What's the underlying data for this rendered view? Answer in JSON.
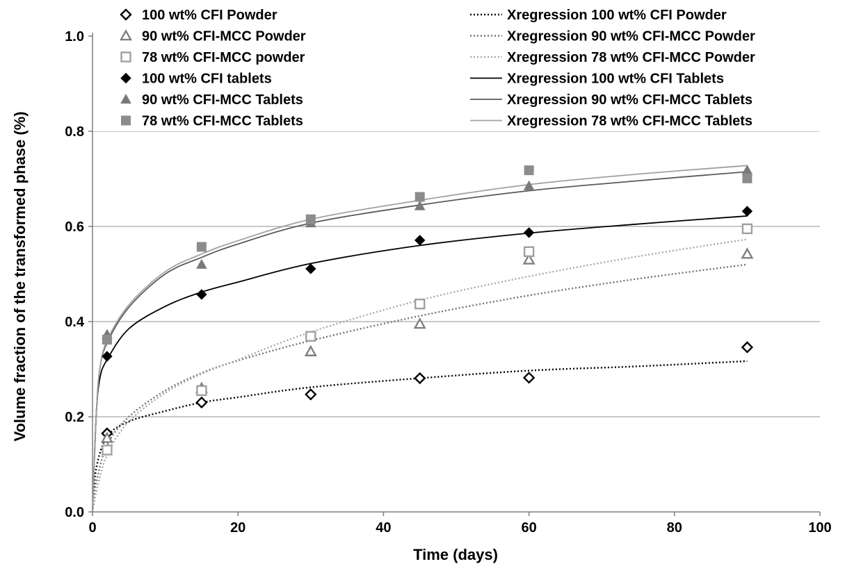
{
  "chart_data": {
    "type": "scatter",
    "title": "",
    "xlabel": "Time (days)",
    "ylabel": "Volume fraction of the transformed phase (%)",
    "xlim": [
      0,
      100
    ],
    "ylim": [
      0,
      1.0
    ],
    "xticks": [
      "0",
      "20",
      "40",
      "60",
      "80",
      "100"
    ],
    "yticks": [
      "0.0",
      "0.2",
      "0.4",
      "0.6",
      "0.8",
      "1.0"
    ],
    "grid": "horizontal",
    "legend_position": "top",
    "series": [
      {
        "name": "100 wt% CFI Powder",
        "marker": "diamond-open",
        "color": "#000000",
        "x": [
          2,
          15,
          30,
          45,
          60,
          90
        ],
        "y": [
          0.165,
          0.23,
          0.247,
          0.281,
          0.282,
          0.346
        ]
      },
      {
        "name": "90   wt% CFI-MCC Powder",
        "marker": "triangle-open",
        "color": "#808080",
        "x": [
          2,
          15,
          30,
          45,
          60,
          90
        ],
        "y": [
          0.155,
          0.26,
          0.337,
          0.395,
          0.53,
          0.542
        ]
      },
      {
        "name": "78   wt% CFI-MCC powder",
        "marker": "square-open",
        "color": "#a0a0a0",
        "x": [
          2,
          15,
          30,
          45,
          60,
          90
        ],
        "y": [
          0.13,
          0.255,
          0.369,
          0.437,
          0.547,
          0.595
        ]
      },
      {
        "name": "100 wt% CFI tablets",
        "marker": "diamond",
        "color": "#000000",
        "x": [
          2,
          15,
          30,
          45,
          60,
          90
        ],
        "y": [
          0.327,
          0.457,
          0.511,
          0.571,
          0.587,
          0.632
        ]
      },
      {
        "name": "90   wt% CFI-MCC Tablets",
        "marker": "triangle",
        "color": "#7a7a7a",
        "x": [
          2,
          15,
          30,
          45,
          60,
          90
        ],
        "y": [
          0.373,
          0.52,
          0.607,
          0.643,
          0.685,
          0.718
        ]
      },
      {
        "name": "78   wt% CFI-MCC Tablets",
        "marker": "square",
        "color": "#8c8c8c",
        "x": [
          2,
          15,
          30,
          45,
          60,
          90
        ],
        "y": [
          0.362,
          0.557,
          0.615,
          0.662,
          0.718,
          0.701
        ]
      }
    ],
    "regressions": [
      {
        "name": "Xregression 100 wt% CFI Powder",
        "style": "dotted",
        "color": "#000000",
        "x": [
          0.5,
          2,
          5,
          10,
          15,
          20,
          30,
          45,
          60,
          75,
          90
        ],
        "y": [
          0.09,
          0.158,
          0.19,
          0.212,
          0.23,
          0.241,
          0.262,
          0.281,
          0.297,
          0.306,
          0.317
        ]
      },
      {
        "name": "Xregression 90   wt% CFI-MCC Powder",
        "style": "dotted",
        "color": "#707070",
        "x": [
          0.5,
          2,
          5,
          10,
          15,
          20,
          30,
          45,
          60,
          75,
          90
        ],
        "y": [
          0.06,
          0.14,
          0.2,
          0.255,
          0.292,
          0.318,
          0.36,
          0.412,
          0.455,
          0.49,
          0.52
        ]
      },
      {
        "name": "Xregression 78   wt% CFI-MCC Powder",
        "style": "dotted",
        "color": "#a8a8a8",
        "x": [
          0.5,
          2,
          5,
          10,
          15,
          20,
          30,
          45,
          60,
          75,
          90
        ],
        "y": [
          0.04,
          0.12,
          0.19,
          0.25,
          0.29,
          0.32,
          0.378,
          0.445,
          0.495,
          0.537,
          0.573
        ]
      },
      {
        "name": "Xregression 100 wt% CFI Tablets",
        "style": "solid",
        "color": "#000000",
        "x": [
          0.5,
          1,
          2,
          5,
          10,
          15,
          20,
          30,
          45,
          60,
          75,
          90
        ],
        "y": [
          0.2,
          0.28,
          0.32,
          0.385,
          0.432,
          0.462,
          0.483,
          0.522,
          0.56,
          0.586,
          0.605,
          0.622
        ]
      },
      {
        "name": "Xregression 90   wt% CFI-MCC Tablets",
        "style": "solid",
        "color": "#5a5a5a",
        "x": [
          0.5,
          1,
          2,
          5,
          10,
          15,
          20,
          30,
          45,
          60,
          75,
          90
        ],
        "y": [
          0.2,
          0.3,
          0.355,
          0.43,
          0.5,
          0.535,
          0.563,
          0.607,
          0.645,
          0.675,
          0.696,
          0.715
        ]
      },
      {
        "name": "Xregression 78   wt% CFI-MCC Tablets",
        "style": "solid",
        "color": "#a0a0a0",
        "x": [
          0.5,
          1,
          2,
          5,
          10,
          15,
          20,
          30,
          45,
          60,
          75,
          90
        ],
        "y": [
          0.2,
          0.3,
          0.36,
          0.435,
          0.505,
          0.542,
          0.57,
          0.615,
          0.655,
          0.688,
          0.71,
          0.728
        ]
      }
    ]
  }
}
